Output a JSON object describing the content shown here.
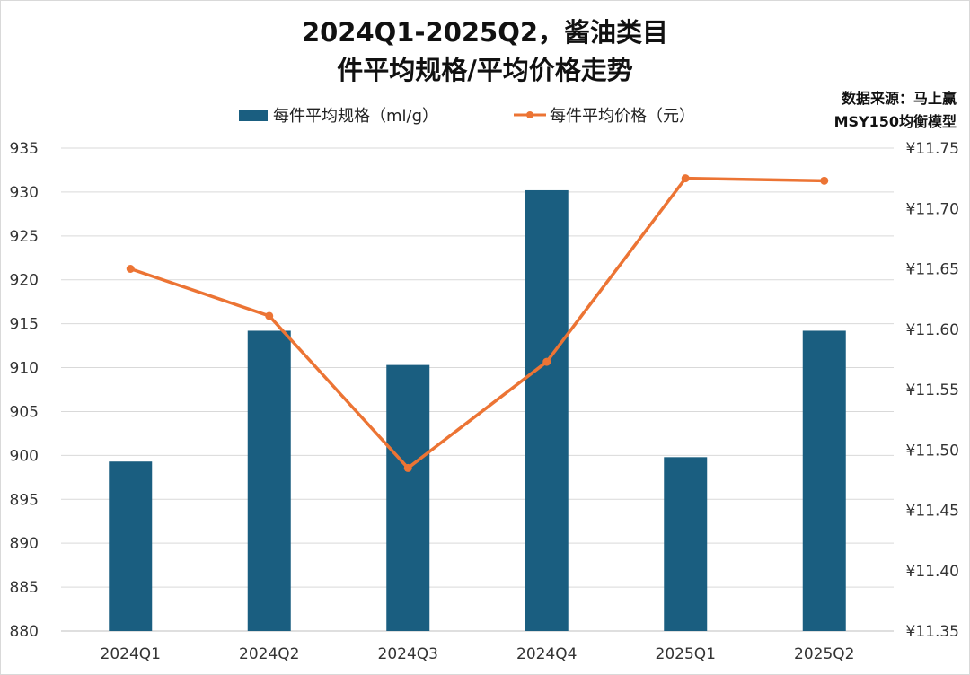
{
  "chart_data": {
    "type": "bar+line",
    "title": [
      "2024Q1-2025Q2，酱油类目",
      "件平均规格/平均价格走势"
    ],
    "source": [
      "数据来源：马上赢",
      "MSY150均衡模型"
    ],
    "categories": [
      "2024Q1",
      "2024Q2",
      "2024Q3",
      "2024Q4",
      "2025Q1",
      "2025Q2"
    ],
    "series": [
      {
        "name": "每件平均规格（ml/g）",
        "type": "bar",
        "axis": "left",
        "color": "#1a5e80",
        "values": [
          899.3,
          914.2,
          910.3,
          930.2,
          899.8,
          914.2
        ]
      },
      {
        "name": "每件平均价格（元）",
        "type": "line",
        "axis": "right",
        "color": "#ec7434",
        "values": [
          11.65,
          11.611,
          11.485,
          11.573,
          11.725,
          11.723
        ]
      }
    ],
    "left_axis": {
      "ylim": [
        880,
        935
      ],
      "step": 5,
      "ticks": [
        "880",
        "885",
        "890",
        "895",
        "900",
        "905",
        "910",
        "915",
        "920",
        "925",
        "930",
        "935"
      ]
    },
    "right_axis": {
      "ylim": [
        11.35,
        11.75
      ],
      "step": 0.05,
      "ticks": [
        "¥11.35",
        "¥11.40",
        "¥11.45",
        "¥11.50",
        "¥11.55",
        "¥11.60",
        "¥11.65",
        "¥11.70",
        "¥11.75"
      ]
    },
    "grid": true,
    "legend_position": "top"
  }
}
